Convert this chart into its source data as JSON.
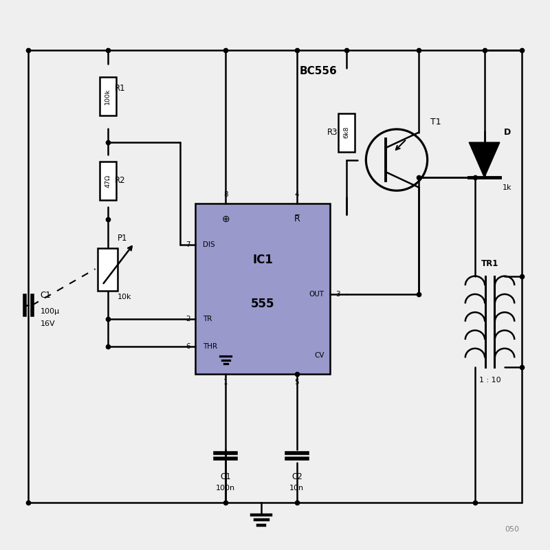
{
  "bg_color": "#efefef",
  "line_color": "#000000",
  "ic_fill": "#9999cc",
  "lw": 1.8,
  "dot_r": 4.5,
  "fig_w": 8.0,
  "fig_h": 8.0,
  "dpi": 100,
  "r1_label": "R1",
  "r1_val": "100k",
  "r2_label": "R2",
  "r2_val": "47Ω",
  "r3_label": "R3",
  "r3_val": "6k8",
  "p1_label": "P1",
  "p1_val": "10k",
  "c1_label": "C1",
  "c1_val": "100µ",
  "c1_v": "16V",
  "c1b_label": "C1",
  "c1b_val": "100n",
  "c2_label": "C2",
  "c2_val": "10n",
  "ic_label1": "IC1",
  "ic_label2": "555",
  "transistor_label": "BC556",
  "t1_label": "T1",
  "diode_label": "D",
  "diode_val": "1k",
  "tr1_label": "TR1",
  "tr1_ratio": "1 : 10",
  "ref_text": "050"
}
